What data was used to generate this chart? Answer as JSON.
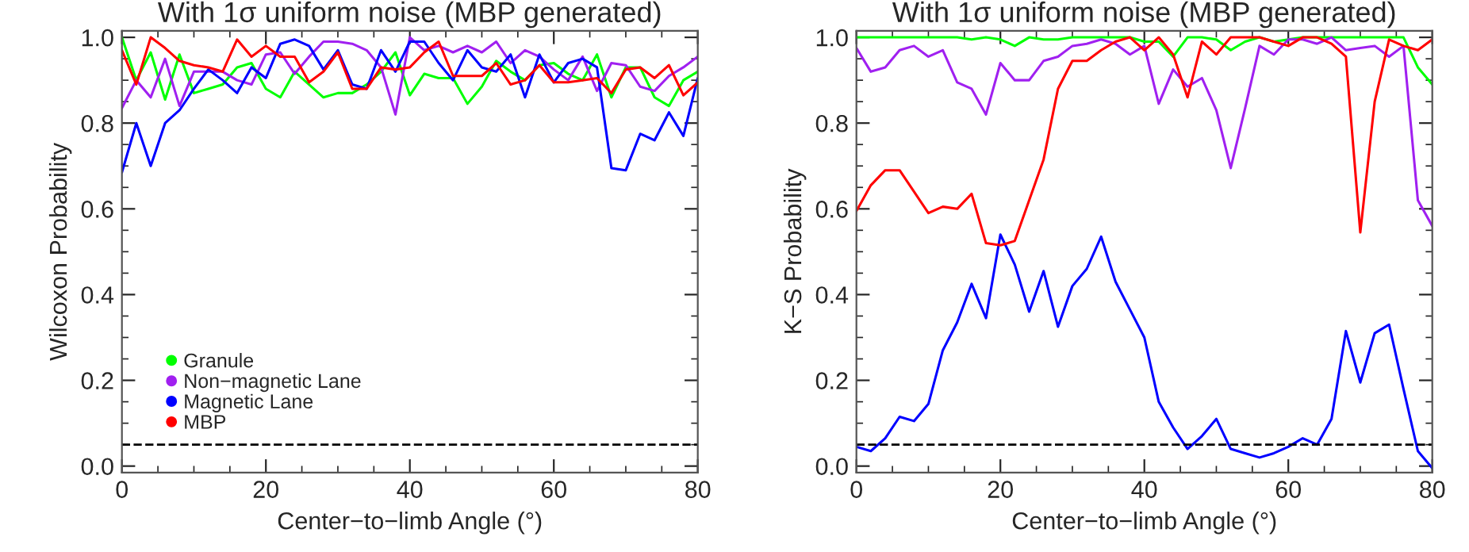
{
  "chart_data": [
    {
      "type": "line",
      "title": "With 1σ uniform noise (MBP generated)",
      "xlabel": "Center−to−limb Angle (°)",
      "ylabel": "Wilcoxon Probability",
      "x": [
        0,
        2,
        4,
        6,
        8,
        10,
        12,
        14,
        16,
        18,
        20,
        22,
        24,
        26,
        28,
        30,
        32,
        34,
        36,
        38,
        40,
        42,
        44,
        46,
        48,
        50,
        52,
        54,
        56,
        58,
        60,
        62,
        64,
        66,
        68,
        70,
        72,
        74,
        76,
        78,
        80
      ],
      "xlim": [
        0,
        80
      ],
      "xticks": [
        0,
        20,
        40,
        60,
        80
      ],
      "ylim": [
        -0.015,
        1.015
      ],
      "yticks": [
        {
          "value": 0,
          "label": "0.0"
        },
        {
          "value": 0.2,
          "label": "0.2"
        },
        {
          "value": 0.4,
          "label": "0.4"
        },
        {
          "value": 0.6,
          "label": "0.6"
        },
        {
          "value": 0.8,
          "label": "0.8"
        },
        {
          "value": 1.0,
          "label": "1.0"
        }
      ],
      "grid": false,
      "legend": "bottom left",
      "marker": "none",
      "line_style": "solid",
      "ref_lines": [
        {
          "axis": "y",
          "value": 0.05,
          "color": "#000000",
          "line_style": "dashed"
        }
      ],
      "series": [
        {
          "name": "Granule",
          "color": "#00ff00",
          "values": [
            1.0,
            0.9,
            0.965,
            0.855,
            0.96,
            0.87,
            0.88,
            0.89,
            0.93,
            0.94,
            0.88,
            0.86,
            0.92,
            0.89,
            0.86,
            0.87,
            0.87,
            0.89,
            0.92,
            0.965,
            0.865,
            0.915,
            0.905,
            0.905,
            0.845,
            0.885,
            0.945,
            0.92,
            0.9,
            0.935,
            0.94,
            0.915,
            0.9,
            0.96,
            0.86,
            0.93,
            0.93,
            0.86,
            0.84,
            0.9,
            0.92
          ]
        },
        {
          "name": "Non−magnetic Lane",
          "color": "#a020f0",
          "values": [
            0.835,
            0.9,
            0.86,
            0.95,
            0.84,
            0.92,
            0.92,
            0.92,
            0.9,
            0.89,
            0.96,
            0.965,
            0.915,
            0.955,
            0.99,
            0.99,
            0.985,
            0.97,
            0.93,
            0.82,
            1.0,
            0.97,
            0.98,
            0.965,
            0.98,
            0.965,
            0.99,
            0.94,
            0.97,
            0.955,
            0.925,
            0.9,
            0.955,
            0.875,
            0.94,
            0.935,
            0.885,
            0.875,
            0.91,
            0.93,
            0.955
          ]
        },
        {
          "name": "Magnetic Lane",
          "color": "#0000ff",
          "values": [
            0.685,
            0.8,
            0.7,
            0.8,
            0.83,
            0.88,
            0.925,
            0.9,
            0.87,
            0.93,
            0.905,
            0.985,
            0.995,
            0.98,
            0.925,
            0.97,
            0.89,
            0.88,
            0.97,
            0.92,
            0.99,
            0.99,
            0.94,
            0.9,
            0.97,
            0.93,
            0.92,
            0.96,
            0.86,
            0.96,
            0.895,
            0.94,
            0.95,
            0.93,
            0.695,
            0.69,
            0.775,
            0.76,
            0.825,
            0.77,
            0.905
          ]
        },
        {
          "name": "MBP",
          "color": "#ff0000",
          "values": [
            0.97,
            0.89,
            1.0,
            0.975,
            0.945,
            0.935,
            0.93,
            0.92,
            0.995,
            0.955,
            0.98,
            0.955,
            0.955,
            0.895,
            0.92,
            0.965,
            0.88,
            0.88,
            0.93,
            0.925,
            0.93,
            0.965,
            0.99,
            0.91,
            0.91,
            0.91,
            0.94,
            0.89,
            0.9,
            0.935,
            0.895,
            0.895,
            0.9,
            0.905,
            0.87,
            0.925,
            0.93,
            0.905,
            0.935,
            0.865,
            0.895
          ]
        }
      ]
    },
    {
      "type": "line",
      "title": "With 1σ uniform noise (MBP generated)",
      "xlabel": "Center−to−limb Angle (°)",
      "ylabel": "K−S Probability",
      "x": [
        0,
        2,
        4,
        6,
        8,
        10,
        12,
        14,
        16,
        18,
        20,
        22,
        24,
        26,
        28,
        30,
        32,
        34,
        36,
        38,
        40,
        42,
        44,
        46,
        48,
        50,
        52,
        54,
        56,
        58,
        60,
        62,
        64,
        66,
        68,
        70,
        72,
        74,
        76,
        78,
        80
      ],
      "xlim": [
        0,
        80
      ],
      "xticks": [
        0,
        20,
        40,
        60,
        80
      ],
      "ylim": [
        -0.015,
        1.015
      ],
      "yticks": [
        {
          "value": 0,
          "label": "0.0"
        },
        {
          "value": 0.2,
          "label": "0.2"
        },
        {
          "value": 0.4,
          "label": "0.4"
        },
        {
          "value": 0.6,
          "label": "0.6"
        },
        {
          "value": 0.8,
          "label": "0.8"
        },
        {
          "value": 1.0,
          "label": "1.0"
        }
      ],
      "grid": false,
      "marker": "none",
      "line_style": "solid",
      "ref_lines": [
        {
          "axis": "y",
          "value": 0.05,
          "color": "#000000",
          "line_style": "dashed"
        }
      ],
      "series": [
        {
          "color": "#00ff00",
          "values": [
            1.0,
            1.0,
            1.0,
            1.0,
            1.0,
            1.0,
            1.0,
            1.0,
            0.995,
            1.0,
            0.995,
            0.98,
            1.0,
            0.995,
            0.995,
            1.0,
            1.0,
            1.0,
            1.0,
            1.0,
            0.99,
            0.99,
            0.955,
            1.0,
            1.0,
            0.995,
            0.97,
            0.99,
            1.0,
            0.99,
            0.995,
            1.0,
            1.0,
            1.0,
            1.0,
            1.0,
            1.0,
            1.0,
            1.0,
            0.93,
            0.89
          ]
        },
        {
          "color": "#a020f0",
          "values": [
            0.975,
            0.92,
            0.93,
            0.97,
            0.98,
            0.955,
            0.97,
            0.895,
            0.88,
            0.82,
            0.94,
            0.9,
            0.9,
            0.945,
            0.955,
            0.98,
            0.985,
            0.995,
            0.985,
            0.96,
            0.98,
            0.845,
            0.925,
            0.885,
            0.905,
            0.83,
            0.695,
            0.835,
            0.98,
            0.96,
            0.995,
            0.995,
            0.985,
            1.0,
            0.97,
            0.975,
            0.98,
            0.955,
            0.98,
            0.62,
            0.56
          ]
        },
        {
          "color": "#0000ff",
          "values": [
            0.045,
            0.035,
            0.065,
            0.115,
            0.105,
            0.145,
            0.27,
            0.335,
            0.425,
            0.345,
            0.54,
            0.47,
            0.36,
            0.455,
            0.325,
            0.42,
            0.46,
            0.535,
            0.43,
            0.365,
            0.3,
            0.15,
            0.09,
            0.04,
            0.07,
            0.11,
            0.04,
            0.03,
            0.02,
            0.03,
            0.045,
            0.065,
            0.05,
            0.11,
            0.315,
            0.195,
            0.31,
            0.33,
            0.18,
            0.035,
            -0.005
          ]
        },
        {
          "color": "#ff0000",
          "values": [
            0.595,
            0.655,
            0.69,
            0.69,
            0.64,
            0.59,
            0.605,
            0.6,
            0.635,
            0.52,
            0.515,
            0.525,
            0.62,
            0.715,
            0.88,
            0.945,
            0.945,
            0.97,
            0.99,
            1.0,
            0.97,
            1.0,
            0.96,
            0.86,
            0.99,
            0.96,
            1.0,
            1.0,
            1.0,
            0.99,
            0.98,
            1.0,
            1.0,
            0.985,
            0.955,
            0.545,
            0.85,
            0.995,
            0.98,
            0.97,
            0.995
          ]
        }
      ]
    }
  ]
}
